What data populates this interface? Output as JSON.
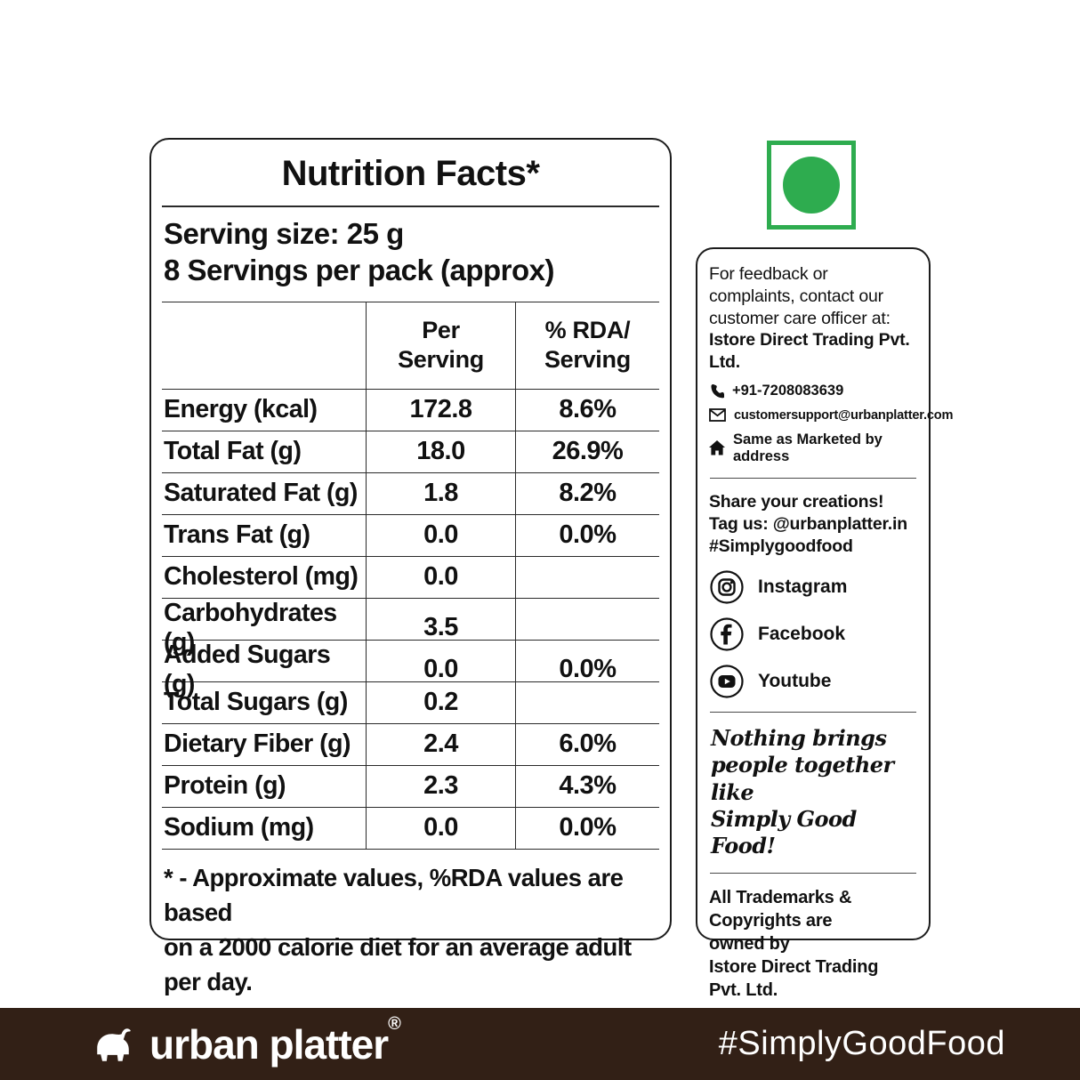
{
  "nutrition": {
    "title": "Nutrition Facts*",
    "serving_size": "Serving size: 25 g",
    "servings_per_pack": "8 Servings per pack (approx)",
    "col_headers": {
      "per_line1": "Per",
      "per_line2": "Serving",
      "rda_line1": "% RDA/",
      "rda_line2": "Serving"
    },
    "rows": [
      {
        "label": "Energy (kcal)",
        "per": "172.8",
        "rda": "8.6%"
      },
      {
        "label": "Total Fat (g)",
        "per": "18.0",
        "rda": "26.9%"
      },
      {
        "label": "Saturated Fat (g)",
        "per": "1.8",
        "rda": "8.2%"
      },
      {
        "label": "Trans Fat (g)",
        "per": "0.0",
        "rda": "0.0%"
      },
      {
        "label": "Cholesterol (mg)",
        "per": "0.0",
        "rda": ""
      },
      {
        "label": "Carbohydrates (g)",
        "per": "3.5",
        "rda": ""
      },
      {
        "label": "Added Sugars (g)",
        "per": "0.0",
        "rda": "0.0%"
      },
      {
        "label": "Total Sugars (g)",
        "per": "0.2",
        "rda": ""
      },
      {
        "label": "Dietary Fiber (g)",
        "per": "2.4",
        "rda": "6.0%"
      },
      {
        "label": "Protein (g)",
        "per": "2.3",
        "rda": "4.3%"
      },
      {
        "label": "Sodium (mg)",
        "per": "0.0",
        "rda": "0.0%"
      }
    ],
    "footnote_line1": "* - Approximate values, %RDA values are based",
    "footnote_line2": "on a 2000 calorie diet for an average adult per day."
  },
  "veg_mark": {
    "meaning": "vegetarian-mark",
    "color": "#2EAC4F"
  },
  "info": {
    "contact_intro": "For feedback or complaints, contact our customer care officer at: ",
    "contact_company": "Istore Direct Trading Pvt. Ltd.",
    "phone": "+91-7208083639",
    "email": "customersupport@urbanplatter.com",
    "address": "Same as Marketed by address",
    "share_line1": "Share your creations!",
    "share_line2": "Tag us: @urbanplatter.in",
    "share_line3": "#Simplygoodfood",
    "social": [
      {
        "label": "Instagram"
      },
      {
        "label": "Facebook"
      },
      {
        "label": "Youtube"
      }
    ],
    "quote_line1": "Nothing brings",
    "quote_line2": "people together like",
    "quote_line3": "Simply Good Food!",
    "trademark_line1": "All Trademarks &",
    "trademark_line2": "Copyrights are",
    "trademark_line3": "owned by",
    "trademark_line4": "Istore Direct Trading",
    "trademark_line5": "Pvt. Ltd."
  },
  "footer": {
    "brand": "urban platter",
    "reg": "®",
    "hashtag": "#SimplyGoodFood",
    "bg_color": "#322016"
  }
}
